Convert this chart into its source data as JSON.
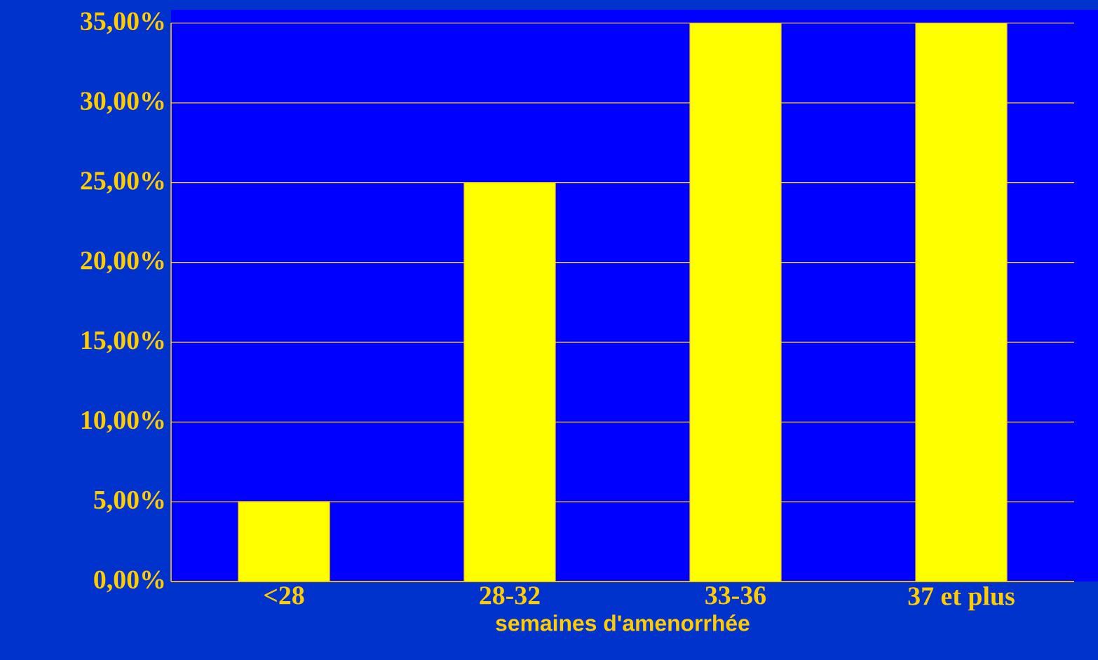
{
  "chart_data": {
    "type": "bar",
    "xlabel": "semaines d'amenorrhée",
    "categories": [
      "<28",
      "28-32",
      "33-36",
      "37 et plus"
    ],
    "values": [
      5,
      25,
      35,
      35
    ],
    "color": "#ffff00",
    "ylim": [
      0,
      35
    ],
    "yticks": [
      {
        "value": 0,
        "label": "0,00%"
      },
      {
        "value": 5,
        "label": "5,00%"
      },
      {
        "value": 10,
        "label": "10,00%"
      },
      {
        "value": 15,
        "label": "15,00%"
      },
      {
        "value": 20,
        "label": "20,00%"
      },
      {
        "value": 25,
        "label": "25,00%"
      },
      {
        "value": 30,
        "label": "30,00%"
      },
      {
        "value": 35,
        "label": "35,00%"
      }
    ],
    "grid": "y"
  }
}
